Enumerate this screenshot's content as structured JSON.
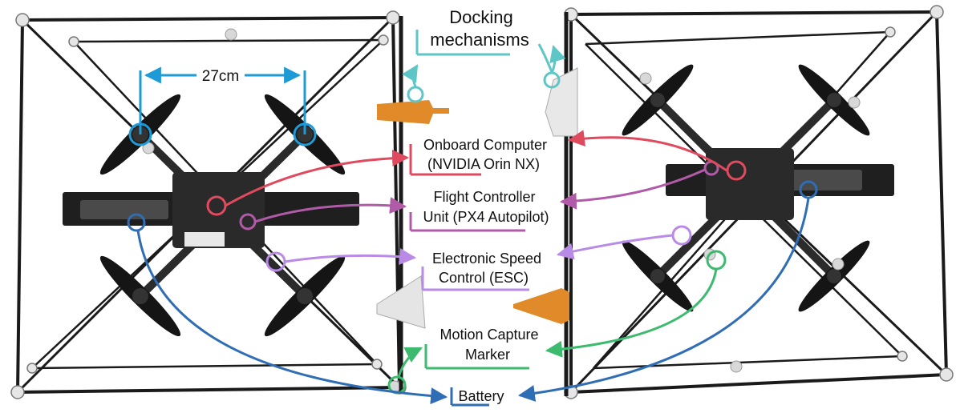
{
  "dimension": {
    "text": "27cm",
    "color": "#1e9ad6"
  },
  "labels": {
    "docking": {
      "line1": "Docking",
      "line2": "mechanisms",
      "color": "#5ec6c6"
    },
    "computer": {
      "line1": "Onboard Computer",
      "line2": "(NVIDIA Orin NX)",
      "color": "#e04a5f"
    },
    "fcu": {
      "line1": "Flight Controller",
      "line2": "Unit (PX4 Autopilot)",
      "color": "#b05aa8"
    },
    "esc": {
      "line1": "Electronic Speed",
      "line2": "Control (ESC)",
      "color": "#b98be6"
    },
    "mocap": {
      "line1": "Motion Capture",
      "line2": "Marker",
      "color": "#3dba6e"
    },
    "battery": {
      "line1": "Battery",
      "color": "#2f6db5"
    }
  },
  "colors": {
    "frame": "#1a1a1a",
    "propeller": "#151515",
    "pcb": "#2a2a2a",
    "orange_dock": "#e08a2a",
    "marker": "#d8d8d8"
  }
}
